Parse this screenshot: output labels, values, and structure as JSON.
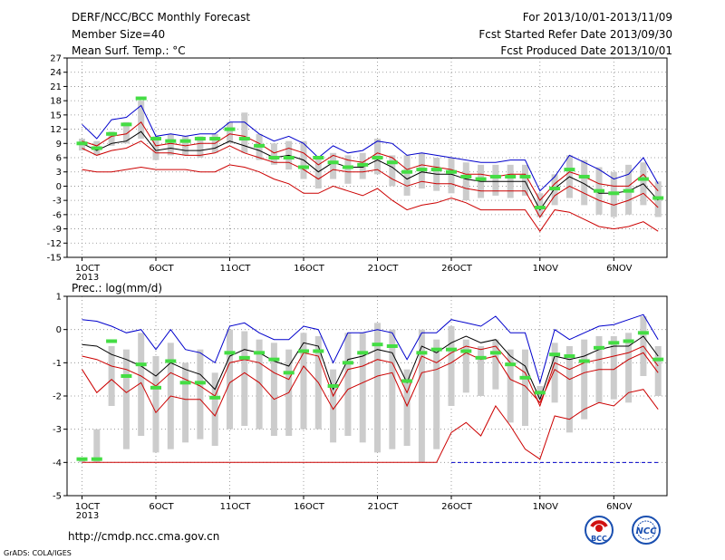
{
  "header": {
    "title": "DERF/NCC/BCC Monthly Forecast",
    "member_size": "Member Size=40",
    "variable": "Mean Surf. Temp.: °C",
    "for_range": "For 2013/10/01-2013/11/09",
    "fcst_started": "Fcst Started Refer Date 2013/09/30",
    "fcst_produced": "Fcst Produced Date 2013/10/01"
  },
  "footer": {
    "url": "http://cmdp.ncc.cma.gov.cn",
    "grads": "GrADS: COLA/IGES",
    "logo1_text": "BCC",
    "logo2_text": "NCC"
  },
  "colors": {
    "max_line": "#0000cc",
    "min_line": "#cc0000",
    "mean_line": "#000000",
    "box": "#cccccc",
    "obs_marker": "#44dd44",
    "baseline_dash": "#0000cc"
  },
  "chart_data": [
    {
      "type": "line",
      "title": "Mean Surf. Temp.: °C",
      "x_ticks": [
        "1OCT",
        "6OCT",
        "11OCT",
        "16OCT",
        "21OCT",
        "26OCT",
        "1NOV",
        "6NOV"
      ],
      "x_tick_days": [
        1,
        6,
        11,
        16,
        21,
        26,
        32,
        37
      ],
      "x_year_label": "2013",
      "ylim": [
        -15,
        27
      ],
      "yticks": [
        -15,
        -12,
        -9,
        -6,
        -3,
        0,
        3,
        6,
        9,
        12,
        15,
        18,
        21,
        24,
        27
      ],
      "grid": true,
      "days": [
        1,
        2,
        3,
        4,
        5,
        6,
        7,
        8,
        9,
        10,
        11,
        12,
        13,
        14,
        15,
        16,
        17,
        18,
        19,
        20,
        21,
        22,
        23,
        24,
        25,
        26,
        27,
        28,
        29,
        30,
        31,
        32,
        33,
        34,
        35,
        36,
        37,
        38,
        39,
        40
      ],
      "series": [
        {
          "role": "max",
          "values": [
            13,
            10,
            14,
            14.5,
            17,
            10.5,
            11,
            10.5,
            11,
            11,
            13.5,
            13.5,
            11,
            9.5,
            10.5,
            9,
            6,
            8.5,
            7,
            7.5,
            9.5,
            9,
            6.5,
            7,
            6.5,
            6,
            5.5,
            5,
            5,
            5.5,
            5.5,
            -1,
            2,
            6.5,
            5,
            3.5,
            1.5,
            2.5,
            6,
            0.5
          ]
        },
        {
          "role": "upper",
          "values": [
            9.5,
            8.5,
            10.5,
            11,
            13.5,
            8.5,
            9,
            8.5,
            9,
            9,
            11,
            10.5,
            9,
            7,
            8,
            7,
            4.5,
            6.5,
            5.5,
            5,
            7,
            6,
            3.5,
            4.5,
            4,
            3.5,
            2.5,
            2.5,
            2,
            2.5,
            2.5,
            -3,
            0.5,
            3,
            2,
            0.5,
            0,
            0,
            2.5,
            -1
          ]
        },
        {
          "role": "mean",
          "values": [
            9,
            7.5,
            9,
            9.5,
            11.5,
            7.5,
            8,
            7.5,
            7.5,
            8,
            9.5,
            8.5,
            7.5,
            6,
            6.5,
            5.5,
            3,
            5,
            4,
            4,
            5.5,
            4,
            1.5,
            3,
            2.5,
            2.5,
            1.5,
            1,
            1,
            1,
            1,
            -5,
            -0.5,
            2,
            0.5,
            -1.5,
            -1.5,
            -1,
            0.5,
            -3
          ]
        },
        {
          "role": "lower",
          "values": [
            8,
            6.5,
            7.5,
            8,
            9.5,
            7,
            7,
            6.5,
            6.5,
            7,
            8.5,
            7,
            6,
            5,
            5,
            3.5,
            1.5,
            3.5,
            3,
            3,
            3.5,
            1.5,
            0,
            1,
            0.5,
            0.5,
            -0.5,
            -1,
            -1,
            -1,
            -1,
            -6.5,
            -2,
            0,
            -1.5,
            -3,
            -4,
            -3,
            -1.5,
            -4.5
          ]
        },
        {
          "role": "min",
          "values": [
            3.5,
            3,
            3,
            3.5,
            4,
            3.5,
            3.5,
            3.5,
            3,
            3,
            4.5,
            4,
            3,
            1.5,
            0.5,
            -1.5,
            -1.5,
            0,
            -1,
            -2,
            -0.5,
            -3,
            -5,
            -4,
            -3.5,
            -2.5,
            -3.5,
            -5,
            -5,
            -5,
            -5,
            -9.5,
            -5,
            -5.5,
            -7,
            -8.5,
            -9,
            -8.5,
            -7.5,
            -9.5
          ]
        },
        {
          "role": "obs",
          "values": [
            9,
            8,
            11,
            13,
            18.5,
            10,
            9.5,
            9.5,
            10,
            10,
            12,
            10,
            8.5,
            6,
            6,
            4,
            6,
            5,
            4,
            4.5,
            6,
            5,
            3,
            3.5,
            3.5,
            3,
            2,
            1.5,
            2,
            2,
            2,
            -4.5,
            -0.5,
            3.5,
            2,
            -1,
            -1.5,
            -1,
            1.5,
            -2.5
          ]
        },
        {
          "role": "box_top",
          "values": [
            10,
            9.5,
            11.5,
            13.5,
            18,
            10.5,
            11,
            10.5,
            10.5,
            11,
            13.5,
            15.5,
            11,
            9,
            9.5,
            9.5,
            6,
            7,
            6.5,
            7,
            10,
            6.5,
            6.5,
            7,
            6,
            6,
            5,
            4.5,
            4.5,
            4.5,
            4.5,
            -1.5,
            2.5,
            6.5,
            5.5,
            4,
            3,
            4.5,
            5,
            1
          ]
        },
        {
          "role": "box_bottom",
          "values": [
            7.5,
            6.5,
            8.5,
            9,
            10,
            5.5,
            6.5,
            6.5,
            6,
            7,
            9,
            7,
            5.5,
            4.5,
            3.5,
            1.5,
            -0.5,
            1.5,
            0.5,
            1.5,
            2.5,
            0,
            -2,
            -0.5,
            -1,
            -1.5,
            -3,
            -2.5,
            -2,
            -2.5,
            -2,
            -6.5,
            -4,
            -2.5,
            -4,
            -6,
            -6.5,
            -6,
            -4,
            -6.5
          ]
        }
      ]
    },
    {
      "type": "line",
      "title": "Prec.: log(mm/d)",
      "x_ticks": [
        "1OCT",
        "6OCT",
        "11OCT",
        "16OCT",
        "21OCT",
        "26OCT",
        "1NOV",
        "6NOV"
      ],
      "x_tick_days": [
        1,
        6,
        11,
        16,
        21,
        26,
        32,
        37
      ],
      "x_year_label": "2013",
      "ylim": [
        -5,
        1
      ],
      "yticks": [
        -5,
        -4,
        -3,
        -2,
        -1,
        0,
        1
      ],
      "grid": true,
      "baseline": -4,
      "days": [
        1,
        2,
        3,
        4,
        5,
        6,
        7,
        8,
        9,
        10,
        11,
        12,
        13,
        14,
        15,
        16,
        17,
        18,
        19,
        20,
        21,
        22,
        23,
        24,
        25,
        26,
        27,
        28,
        29,
        30,
        31,
        32,
        33,
        34,
        35,
        36,
        37,
        38,
        39,
        40
      ],
      "series": [
        {
          "role": "max",
          "values": [
            0.3,
            0.25,
            0.1,
            -0.1,
            0,
            -0.6,
            0,
            -0.6,
            -0.7,
            -1,
            0.1,
            0.2,
            -0.1,
            -0.3,
            -0.3,
            0.1,
            0,
            -1,
            -0.1,
            -0.1,
            0,
            -0.1,
            -0.9,
            -0.1,
            -0.1,
            0.3,
            0.2,
            0.1,
            0.4,
            -0.1,
            -0.1,
            -1.6,
            0,
            -0.3,
            -0.1,
            0.1,
            0.15,
            0.3,
            0.45,
            -0.3
          ]
        },
        {
          "role": "mean",
          "values": [
            -0.45,
            -0.5,
            -0.75,
            -0.9,
            -1.1,
            -1.4,
            -1,
            -1.2,
            -1.35,
            -1.8,
            -0.8,
            -0.6,
            -0.7,
            -0.95,
            -1.1,
            -0.4,
            -0.5,
            -1.8,
            -0.9,
            -0.8,
            -0.6,
            -0.7,
            -1.6,
            -0.5,
            -0.7,
            -0.4,
            -0.2,
            -0.4,
            -0.3,
            -0.8,
            -1.1,
            -2.1,
            -0.8,
            -0.9,
            -0.8,
            -0.6,
            -0.5,
            -0.5,
            -0.2,
            -0.8
          ]
        },
        {
          "role": "upper",
          "values": [
            -0.8,
            -0.9,
            -1.1,
            -1.2,
            -1.4,
            -1.7,
            -1.3,
            -1.5,
            -1.7,
            -2,
            -1,
            -0.9,
            -1,
            -1.3,
            -1.5,
            -0.7,
            -0.8,
            -2,
            -1.2,
            -1.1,
            -0.9,
            -1,
            -1.9,
            -0.8,
            -1,
            -0.7,
            -0.5,
            -0.6,
            -0.5,
            -1,
            -1.3,
            -2.3,
            -1,
            -1.2,
            -1,
            -0.9,
            -0.8,
            -0.7,
            -0.5,
            -1.1
          ]
        },
        {
          "role": "min",
          "values": [
            -1.2,
            -1.9,
            -1.5,
            -1.9,
            -1.6,
            -2.5,
            -2,
            -2.1,
            -2.1,
            -2.6,
            -1.6,
            -1.3,
            -1.6,
            -2.1,
            -1.9,
            -1.1,
            -1.6,
            -2.4,
            -1.8,
            -1.6,
            -1.4,
            -1.3,
            -2.3,
            -1.3,
            -1.2,
            -1,
            -0.7,
            -0.9,
            -0.8,
            -1.5,
            -1.7,
            -2.2,
            -1.2,
            -1.5,
            -1.3,
            -1.2,
            -1.2,
            -0.9,
            -0.7,
            -1.3
          ]
        },
        {
          "role": "lower",
          "values": [
            -4,
            -4,
            -4,
            -4,
            -4,
            -4,
            -4,
            -4,
            -4,
            -4,
            -4,
            -4,
            -4,
            -4,
            -4,
            -4,
            -4,
            -4,
            -4,
            -4,
            -4,
            -4,
            -4,
            -4,
            -4,
            -3.1,
            -2.8,
            -3.2,
            -2.3,
            -2.9,
            -3.6,
            -3.9,
            -2.6,
            -2.7,
            -2.4,
            -2.2,
            -2.3,
            -1.9,
            -1.8,
            -2.4
          ]
        },
        {
          "role": "obs",
          "values": [
            -3.9,
            -3.9,
            -0.35,
            -1.4,
            -1.05,
            -1.75,
            -0.95,
            -1.6,
            -1.6,
            -2.05,
            -0.7,
            -0.85,
            -0.7,
            -0.9,
            -1.3,
            -0.65,
            -0.65,
            -1.7,
            -1,
            -0.7,
            -0.45,
            -0.5,
            -1.55,
            -0.7,
            -0.6,
            -0.6,
            -0.65,
            -0.85,
            -0.7,
            -1.05,
            -1.45,
            -1.9,
            -0.75,
            -0.8,
            -0.95,
            -0.55,
            -0.4,
            -0.35,
            -0.1,
            -0.9
          ]
        },
        {
          "role": "box_top",
          "values": [
            -3.95,
            -3,
            -0.5,
            -0.6,
            -0.1,
            -0.8,
            -0.4,
            -1,
            -0.6,
            -1.3,
            0,
            -0.05,
            -0.3,
            -0.4,
            -0.6,
            -0.1,
            -0.2,
            -1.2,
            -0.1,
            -0.1,
            0.2,
            0,
            -1.2,
            0,
            -0.3,
            0.1,
            -0.3,
            -0.5,
            -0.3,
            -0.6,
            -0.6,
            -1.7,
            -0.4,
            -0.5,
            -0.3,
            -0.2,
            -0.2,
            -0.1,
            0.4,
            -0.5
          ]
        },
        {
          "role": "box_bottom",
          "values": [
            -4,
            -4,
            -2.3,
            -3.6,
            -3.2,
            -3.7,
            -3.6,
            -3.4,
            -3.3,
            -3.5,
            -3,
            -2.9,
            -3,
            -3.2,
            -3.2,
            -3,
            -3,
            -3.4,
            -3.2,
            -3.4,
            -3.7,
            -3.6,
            -3.5,
            -4,
            -3.6,
            -2.3,
            -1.9,
            -2,
            -1.8,
            -2.8,
            -2.9,
            -2.1,
            -2.2,
            -3.1,
            -2.7,
            -2.2,
            -2.1,
            -2.2,
            -1.4,
            -2
          ]
        }
      ]
    }
  ]
}
